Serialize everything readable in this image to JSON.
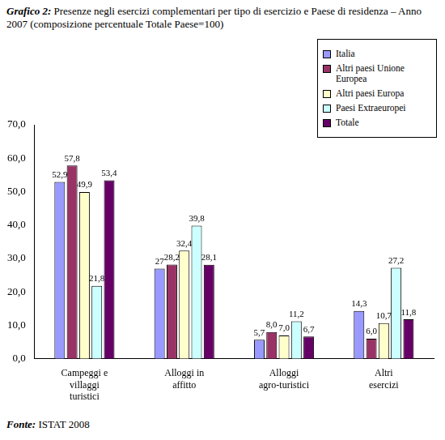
{
  "chart_data": {
    "type": "bar",
    "title": "Grafico 2: Presenze negli esercizi complementari per tipo di esercizio e Paese di residenza – Anno 2007 (composizione percentuale Totale Paese=100)",
    "source": "Fonte: ISTAT 2008",
    "categories": [
      "Campeggi e villaggi turistici",
      "Alloggi in affitto",
      "Alloggi agro-turistici",
      "Altri esercizi"
    ],
    "series": [
      {
        "name": "Italia",
        "color": "#9999ff",
        "values": [
          52.9,
          27,
          5.7,
          14.3
        ],
        "value_labels": [
          "52,9",
          "27",
          "5,7",
          "14,3"
        ]
      },
      {
        "name": "Altri paesi Unione Europea",
        "color": "#993366",
        "values": [
          57.8,
          28.2,
          8.0,
          6.0
        ],
        "value_labels": [
          "57,8",
          "28,2",
          "8,0",
          "6,0"
        ]
      },
      {
        "name": "Altri paesi Europa",
        "color": "#ffffcc",
        "values": [
          49.9,
          32.4,
          7.0,
          10.7
        ],
        "value_labels": [
          "49,9",
          "32,4",
          "7,0",
          "10,7"
        ]
      },
      {
        "name": "Paesi Extraeuropei",
        "color": "#ccffff",
        "values": [
          21.8,
          39.8,
          11.2,
          27.2
        ],
        "value_labels": [
          "21,8",
          "39,8",
          "11,2",
          "27,2"
        ]
      },
      {
        "name": "Totale",
        "color": "#660066",
        "values": [
          53.4,
          28.1,
          6.7,
          11.8
        ],
        "value_labels": [
          "53,4",
          "28,1",
          "6,7",
          "11,8"
        ]
      }
    ],
    "ylim": [
      0,
      70
    ],
    "yticks": [
      {
        "value": 0,
        "label": "0,0"
      },
      {
        "value": 10,
        "label": "10,0"
      },
      {
        "value": 20,
        "label": "20,0"
      },
      {
        "value": 30,
        "label": "30,0"
      },
      {
        "value": 40,
        "label": "40,0"
      },
      {
        "value": 50,
        "label": "50,0"
      },
      {
        "value": 60,
        "label": "60,0"
      },
      {
        "value": 70,
        "label": "70,0"
      }
    ],
    "grid": false,
    "legend": "upper right",
    "data_labels": true
  }
}
